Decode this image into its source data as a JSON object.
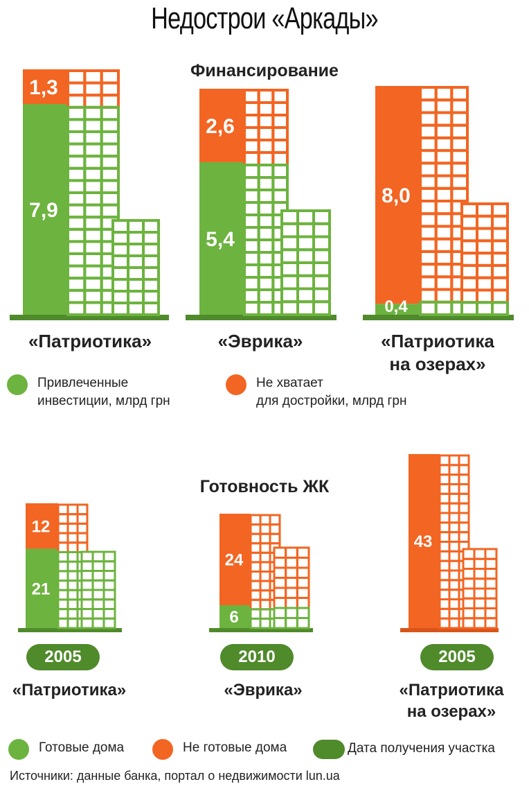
{
  "title": "Недострои «Аркады»",
  "colors": {
    "green": "#6db33f",
    "orange": "#f26522",
    "dark_green": "#4f8a2b"
  },
  "chart_data": [
    {
      "type": "bar",
      "subtitle": "Финансирование",
      "stacked": true,
      "categories": [
        "«Патриотика»",
        "«Эврика»",
        "«Патриотика на озерах»"
      ],
      "series": [
        {
          "name": "Привлеченные инвестиции, млрд грн",
          "color": "#6db33f",
          "values": [
            7.9,
            5.4,
            0.4
          ],
          "labels": [
            "7,9",
            "5,4",
            "0,4"
          ]
        },
        {
          "name": "Не хватает для достройки, млрд грн",
          "color": "#f26522",
          "values": [
            1.3,
            2.6,
            8.0
          ],
          "labels": [
            "1,3",
            "2,6",
            "8,0"
          ]
        }
      ]
    },
    {
      "type": "bar",
      "subtitle": "Готовность ЖК",
      "stacked": true,
      "categories": [
        "«Патриотика»",
        "«Эврика»",
        "«Патриотика на озерах»"
      ],
      "series": [
        {
          "name": "Готовые дома",
          "color": "#6db33f",
          "values": [
            21,
            6,
            0
          ],
          "labels": [
            "21",
            "6",
            ""
          ]
        },
        {
          "name": "Не готовые дома",
          "color": "#f26522",
          "values": [
            12,
            24,
            43
          ],
          "labels": [
            "12",
            "24",
            "43"
          ]
        }
      ],
      "years": [
        "2005",
        "2010",
        "2005"
      ],
      "year_legend": "Дата получения участка"
    }
  ],
  "names": {
    "top": [
      "«Патриотика»",
      "«Эврика»",
      "«Патриотика",
      "на озерах»"
    ],
    "bottom": [
      "«Патриотика»",
      "«Эврика»",
      "«Патриотика",
      "на озерах»"
    ]
  },
  "legend_top": [
    "Привлеченные\nинвестиции, млрд грн",
    "Не хватает\nдля достройки, млрд грн"
  ],
  "legend_bottom": [
    "Готовые дома",
    "Не готовые дома",
    "Дата получения участка"
  ],
  "source": "Источники: данные банка, портал о недвижимости lun.ua"
}
